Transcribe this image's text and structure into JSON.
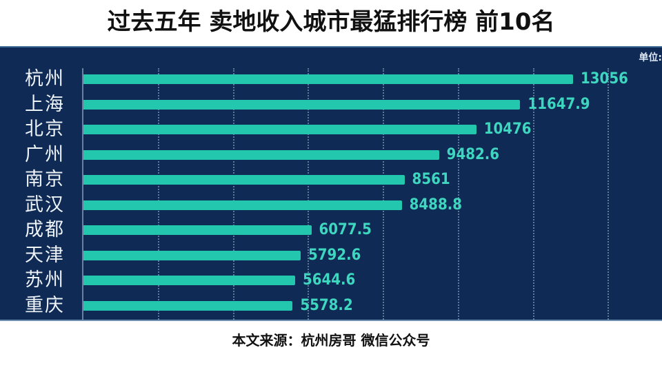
{
  "title": "过去五年 卖地收入城市最猛排行榜 前10名",
  "unit_label": "单位:",
  "source": "本文来源：杭州房哥 微信公众号",
  "colors": {
    "panel_bg": "#0e2a55",
    "bar": "#23c7ae",
    "value_text": "#3fd6c0"
  },
  "chart_data": {
    "type": "bar",
    "orientation": "horizontal",
    "title": "过去五年 卖地收入城市最猛排行榜 前10名",
    "xlabel": "",
    "ylabel": "",
    "unit": "单位:",
    "categories": [
      "杭州",
      "上海",
      "北京",
      "广州",
      "南京",
      "武汉",
      "成都",
      "天津",
      "苏州",
      "重庆"
    ],
    "values": [
      13056,
      11647.9,
      10476,
      9482.6,
      8561,
      8488.8,
      6077.5,
      5792.6,
      5644.6,
      5578.2
    ],
    "value_labels": [
      "13056",
      "11647.9",
      "10476",
      "9482.6",
      "8561",
      "8488.8",
      "6077.5",
      "5792.6",
      "5644.6",
      "5578.2"
    ],
    "xlim": [
      0,
      15000
    ],
    "grid": true,
    "gridline_step": 2000,
    "legend": "none"
  }
}
